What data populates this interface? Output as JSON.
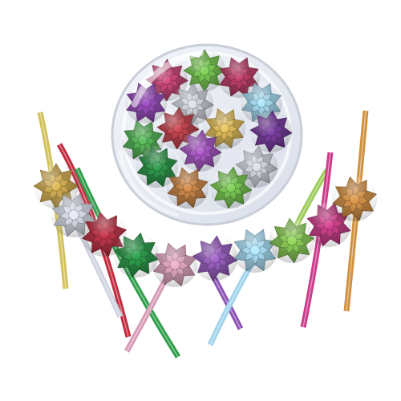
{
  "background": "#ffffff",
  "container": {
    "rim": "#c9ced8",
    "fill": "#e8ebf2",
    "glare": "#ffffff"
  },
  "bows_in_container": [
    {
      "color": "#6bbd45",
      "name": "green"
    },
    {
      "color": "#b0305a",
      "name": "magenta"
    },
    {
      "color": "#c0396d",
      "name": "raspberry"
    },
    {
      "color": "#8a3fae",
      "name": "purple"
    },
    {
      "color": "#c9ccd6",
      "name": "silver"
    },
    {
      "color": "#9ad0e6",
      "name": "light-blue"
    },
    {
      "color": "#b7363f",
      "name": "red"
    },
    {
      "color": "#d4b04d",
      "name": "gold"
    },
    {
      "color": "#6b2f92",
      "name": "violet"
    },
    {
      "color": "#47a84a",
      "name": "green"
    },
    {
      "color": "#9b4bb7",
      "name": "lilac"
    },
    {
      "color": "#1f8a3c",
      "name": "emerald"
    },
    {
      "color": "#c9ccd6",
      "name": "silver"
    },
    {
      "color": "#c07a3a",
      "name": "copper"
    }
  ],
  "bows_on_ribbon": [
    {
      "color": "#c9a444",
      "name": "gold"
    },
    {
      "color": "#cfd4e0",
      "name": "silver"
    },
    {
      "color": "#b2263a",
      "name": "red"
    },
    {
      "color": "#1f8e3d",
      "name": "green"
    },
    {
      "color": "#d79bb6",
      "name": "pink"
    },
    {
      "color": "#8d52b4",
      "name": "purple"
    },
    {
      "color": "#9fd4ec",
      "name": "light-blue"
    },
    {
      "color": "#7fc04a",
      "name": "lime"
    },
    {
      "color": "#c2327f",
      "name": "magenta"
    },
    {
      "color": "#c9863a",
      "name": "copper"
    }
  ],
  "ribbons": [
    {
      "color": "#d2c15a",
      "name": "gold"
    },
    {
      "color": "#c22a3e",
      "name": "red"
    },
    {
      "color": "#2e9e4a",
      "name": "green"
    },
    {
      "color": "#cfd4e0",
      "name": "silver"
    },
    {
      "color": "#d79bb6",
      "name": "pink"
    },
    {
      "color": "#8d52b4",
      "name": "purple"
    },
    {
      "color": "#9fd4ec",
      "name": "light-blue"
    },
    {
      "color": "#9ccc5a",
      "name": "lime"
    },
    {
      "color": "#cc3a8a",
      "name": "magenta"
    },
    {
      "color": "#d0913e",
      "name": "copper"
    }
  ]
}
